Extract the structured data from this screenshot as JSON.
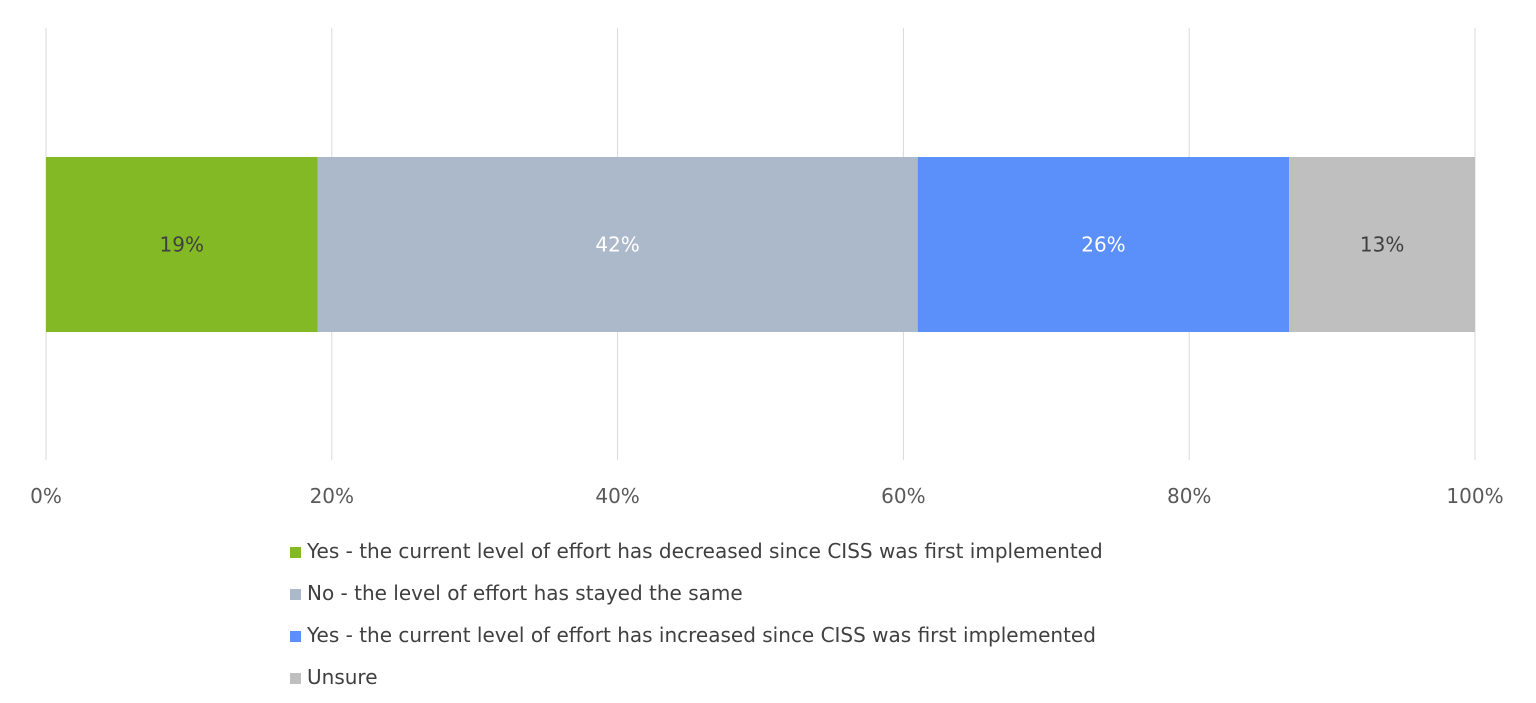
{
  "chart_data": {
    "type": "bar",
    "orientation": "horizontal",
    "stacked": true,
    "percent": true,
    "categories": [
      ""
    ],
    "xlim": [
      0,
      100
    ],
    "x_ticks": [
      "0%",
      "20%",
      "40%",
      "60%",
      "80%",
      "100%"
    ],
    "grid": true,
    "legend_position": "bottom",
    "series": [
      {
        "name": "Yes - the current level of effort has decreased since CISS was first implemented",
        "values": [
          19
        ],
        "label": "19%",
        "color": "#84b926",
        "label_color": "#404040"
      },
      {
        "name": "No - the level of effort has stayed the same",
        "values": [
          42
        ],
        "label": "42%",
        "color": "#acb9ca",
        "label_color": "#ffffff"
      },
      {
        "name": "Yes - the current level of effort has increased since CISS was first implemented",
        "values": [
          26
        ],
        "label": "26%",
        "color": "#5b8ffa",
        "label_color": "#ffffff"
      },
      {
        "name": "Unsure",
        "values": [
          13
        ],
        "label": "13%",
        "color": "#bfbfbf",
        "label_color": "#404040"
      }
    ]
  }
}
